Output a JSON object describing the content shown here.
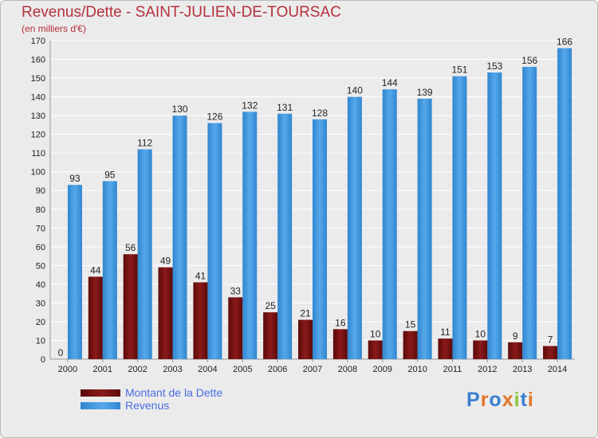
{
  "header": {
    "title": "Revenus/Dette - SAINT-JULIEN-DE-TOURSAC",
    "subtitle": "(en milliers d'€)"
  },
  "legend": {
    "dette_label": "Montant de la Dette",
    "revenus_label": "Revenus"
  },
  "logo": {
    "text": "Proxiti"
  },
  "colors": {
    "dette": "#8b1a1a",
    "dette_dark": "#5a0a0a",
    "revenus": "#56a8ea",
    "revenus_dark": "#2f86d0",
    "background": "#ebebeb",
    "axis_text": "#222222"
  },
  "chart_data": {
    "type": "bar",
    "categories": [
      "2000",
      "2001",
      "2002",
      "2003",
      "2004",
      "2005",
      "2006",
      "2007",
      "2008",
      "2009",
      "2010",
      "2011",
      "2012",
      "2013",
      "2014"
    ],
    "series": [
      {
        "name": "Montant de la Dette",
        "values": [
          0,
          44,
          56,
          49,
          41,
          33,
          25,
          21,
          16,
          10,
          15,
          11,
          10,
          9,
          7
        ]
      },
      {
        "name": "Revenus",
        "values": [
          93,
          95,
          112,
          130,
          126,
          132,
          131,
          128,
          140,
          144,
          139,
          151,
          153,
          156,
          166
        ]
      }
    ],
    "title": "Revenus/Dette - SAINT-JULIEN-DE-TOURSAC",
    "ylabel": "(en milliers d'€)",
    "ylim": [
      0,
      170
    ],
    "yticks": [
      0,
      10,
      20,
      30,
      40,
      50,
      60,
      70,
      80,
      90,
      100,
      110,
      120,
      130,
      140,
      150,
      160,
      170
    ],
    "grid": true,
    "legend_position": "bottom-left"
  }
}
